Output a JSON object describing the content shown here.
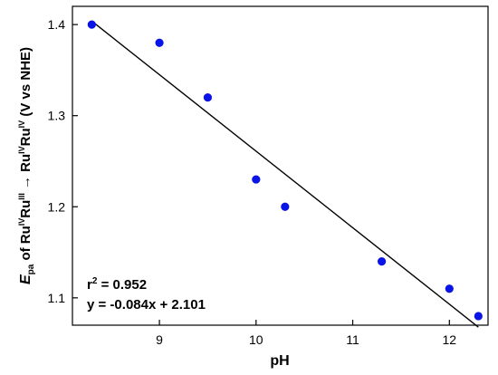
{
  "chart_data": {
    "type": "scatter",
    "xlabel": "pH",
    "ylabel": {
      "e": "E",
      "pa": "pa",
      "of": " of Ru",
      "iv1": "IV",
      "ru1": "Ru",
      "iii": "III",
      "arrow": " → Ru",
      "iv2": "IV",
      "ru2": "Ru",
      "iv3": "IV",
      "units": " (V vs NHE)"
    },
    "xlim": [
      8.1,
      12.4
    ],
    "ylim": [
      1.07,
      1.42
    ],
    "xticks": [
      "9",
      "10",
      "11",
      "12"
    ],
    "yticks": [
      "1.1",
      "1.2",
      "1.3",
      "1.4"
    ],
    "x": [
      8.3,
      9.0,
      9.5,
      10.0,
      10.3,
      11.3,
      12.0,
      12.3
    ],
    "y": [
      1.4,
      1.38,
      1.32,
      1.23,
      1.2,
      1.14,
      1.11,
      1.08
    ],
    "fit": {
      "slope": -0.084,
      "intercept": 2.101,
      "x_range": [
        8.3,
        12.3
      ]
    },
    "annotations": {
      "r2_prefix": "r",
      "r2_sup": "2",
      "r2_value": " = 0.952",
      "equation": "y = -0.084x + 2.101"
    },
    "colors": {
      "points": "#0a14e6",
      "line": "#000000"
    },
    "grid": false
  }
}
